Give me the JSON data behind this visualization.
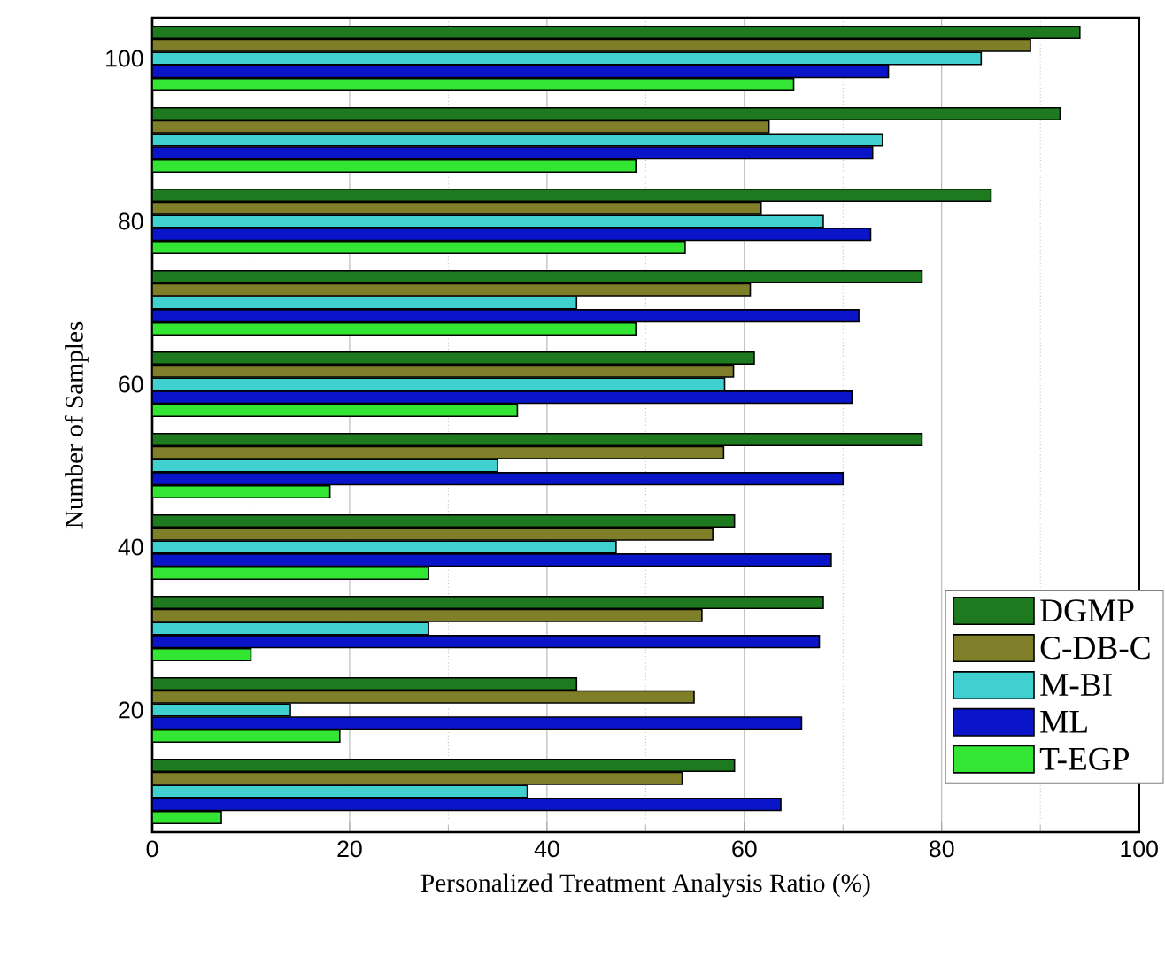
{
  "chart_data": {
    "type": "bar",
    "orientation": "horizontal",
    "xlabel": "Personalized Treatment Analysis Ratio (%)",
    "ylabel": "Number of Samples",
    "categories": [
      "100",
      null,
      "80",
      null,
      "60",
      null,
      "40",
      null,
      "20",
      null
    ],
    "series": [
      {
        "name": "DGMP",
        "color": "#1e7a1e",
        "values": [
          94,
          92,
          85,
          78,
          61,
          78,
          59,
          68,
          43,
          59
        ]
      },
      {
        "name": "C-DB-C",
        "color": "#7f7f2a",
        "values": [
          89,
          62.5,
          61.7,
          60.6,
          58.9,
          57.9,
          56.8,
          55.7,
          54.9,
          53.7
        ]
      },
      {
        "name": "M-BI",
        "color": "#40d0d0",
        "values": [
          84,
          74,
          68,
          43,
          58,
          35,
          47,
          28,
          14,
          38
        ]
      },
      {
        "name": "ML",
        "color": "#0a14c8",
        "values": [
          74.6,
          73,
          72.8,
          71.6,
          70.9,
          70,
          68.8,
          67.6,
          65.8,
          63.7
        ]
      },
      {
        "name": "T-EGP",
        "color": "#33e633",
        "values": [
          65,
          49,
          54,
          49,
          37,
          18,
          28,
          10,
          19,
          7
        ]
      }
    ],
    "xlim": [
      0,
      100
    ],
    "xticks": [
      0,
      20,
      40,
      60,
      80,
      100
    ],
    "grid": "x",
    "legend": "bottom right"
  }
}
